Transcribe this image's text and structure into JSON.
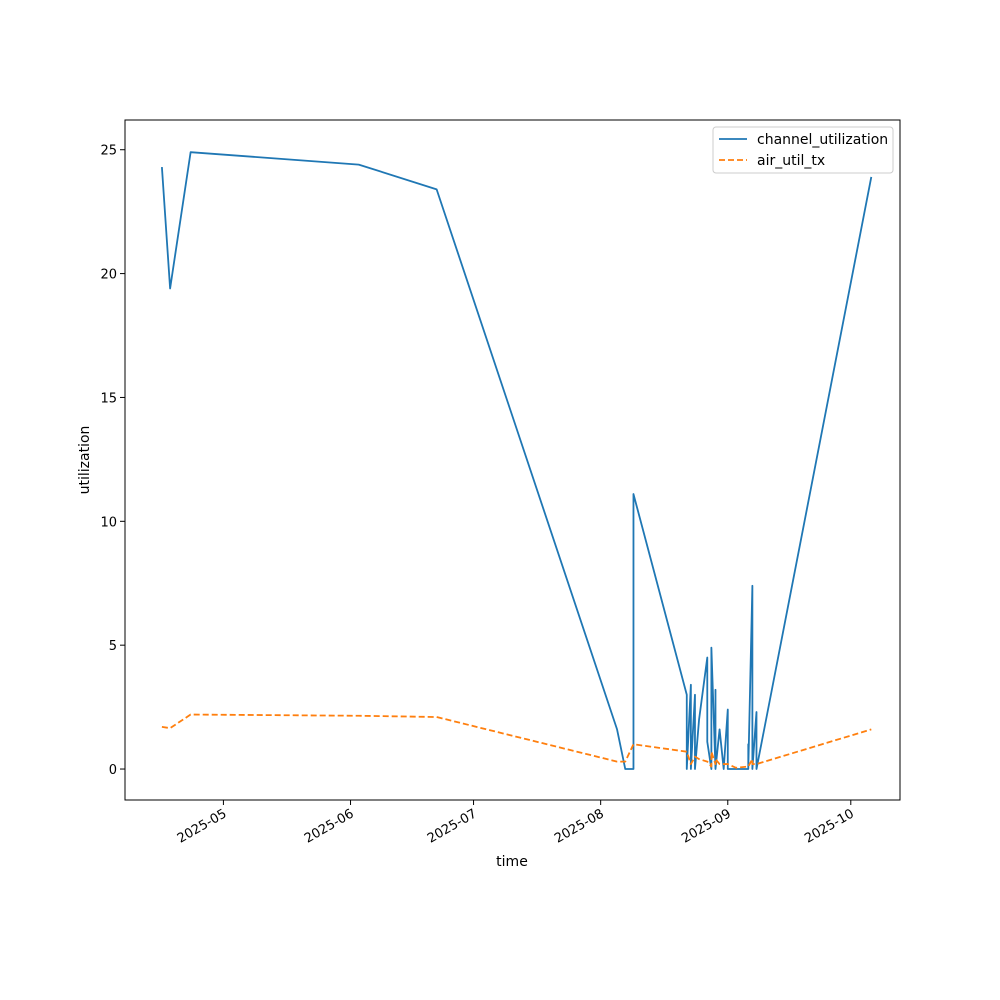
{
  "chart_data": {
    "type": "line",
    "title": "",
    "xlabel": "time",
    "ylabel": "utilization",
    "x_type": "date",
    "xlim": [
      "2025-04-07",
      "2025-10-13"
    ],
    "ylim": [
      -1.25,
      26.2
    ],
    "grid": false,
    "legend_position": "upper right",
    "x_ticks": [
      "2025-05-01",
      "2025-06-01",
      "2025-07-01",
      "2025-08-01",
      "2025-09-01",
      "2025-10-01"
    ],
    "x_tick_labels": [
      "2025-05",
      "2025-06",
      "2025-07",
      "2025-08",
      "2025-09",
      "2025-10"
    ],
    "y_ticks": [
      0,
      5,
      10,
      15,
      20,
      25
    ],
    "y_tick_labels": [
      "0",
      "5",
      "10",
      "15",
      "20",
      "25"
    ],
    "series": [
      {
        "name": "channel_utilization",
        "color": "#1f77b4",
        "dash": "solid",
        "points": [
          [
            "2025-04-16",
            24.3
          ],
          [
            "2025-04-18",
            19.4
          ],
          [
            "2025-04-23",
            24.9
          ],
          [
            "2025-06-03",
            24.4
          ],
          [
            "2025-06-22",
            23.4
          ],
          [
            "2025-08-05",
            1.6
          ],
          [
            "2025-08-07",
            0.0
          ],
          [
            "2025-08-09",
            0.0
          ],
          [
            "2025-08-09",
            11.1
          ],
          [
            "2025-08-22",
            3.0
          ],
          [
            "2025-08-22",
            0.0
          ],
          [
            "2025-08-23",
            3.4
          ],
          [
            "2025-08-23",
            0.0
          ],
          [
            "2025-08-24",
            3.0
          ],
          [
            "2025-08-24",
            0.0
          ],
          [
            "2025-08-25",
            2.0
          ],
          [
            "2025-08-27",
            4.5
          ],
          [
            "2025-08-27",
            1.1
          ],
          [
            "2025-08-28",
            0.0
          ],
          [
            "2025-08-28",
            4.9
          ],
          [
            "2025-08-29",
            0.0
          ],
          [
            "2025-08-29",
            3.2
          ],
          [
            "2025-08-29",
            0.0
          ],
          [
            "2025-08-30",
            1.6
          ],
          [
            "2025-08-31",
            0.0
          ],
          [
            "2025-09-01",
            2.4
          ],
          [
            "2025-09-01",
            0.0
          ],
          [
            "2025-09-03",
            0.0
          ],
          [
            "2025-09-06",
            0.0
          ],
          [
            "2025-09-06",
            1.0
          ],
          [
            "2025-09-06",
            0.0
          ],
          [
            "2025-09-07",
            7.4
          ],
          [
            "2025-09-07",
            0.0
          ],
          [
            "2025-09-08",
            2.3
          ],
          [
            "2025-09-08",
            0.0
          ],
          [
            "2025-10-06",
            23.9
          ]
        ]
      },
      {
        "name": "air_util_tx",
        "color": "#ff7f0e",
        "dash": "dashed",
        "points": [
          [
            "2025-04-16",
            1.7
          ],
          [
            "2025-04-18",
            1.65
          ],
          [
            "2025-04-23",
            2.2
          ],
          [
            "2025-06-03",
            2.15
          ],
          [
            "2025-06-22",
            2.1
          ],
          [
            "2025-08-05",
            0.3
          ],
          [
            "2025-08-07",
            0.3
          ],
          [
            "2025-08-09",
            1.0
          ],
          [
            "2025-08-22",
            0.7
          ],
          [
            "2025-08-23",
            0.2
          ],
          [
            "2025-08-24",
            0.5
          ],
          [
            "2025-08-25",
            0.4
          ],
          [
            "2025-08-27",
            0.3
          ],
          [
            "2025-08-28",
            0.1
          ],
          [
            "2025-08-28",
            0.7
          ],
          [
            "2025-08-29",
            0.2
          ],
          [
            "2025-08-29",
            0.4
          ],
          [
            "2025-08-30",
            0.2
          ],
          [
            "2025-08-31",
            0.2
          ],
          [
            "2025-09-01",
            0.2
          ],
          [
            "2025-09-03",
            0.05
          ],
          [
            "2025-09-06",
            0.1
          ],
          [
            "2025-09-07",
            0.4
          ],
          [
            "2025-09-07",
            0.2
          ],
          [
            "2025-09-08",
            0.2
          ],
          [
            "2025-10-06",
            1.6
          ]
        ]
      }
    ]
  }
}
